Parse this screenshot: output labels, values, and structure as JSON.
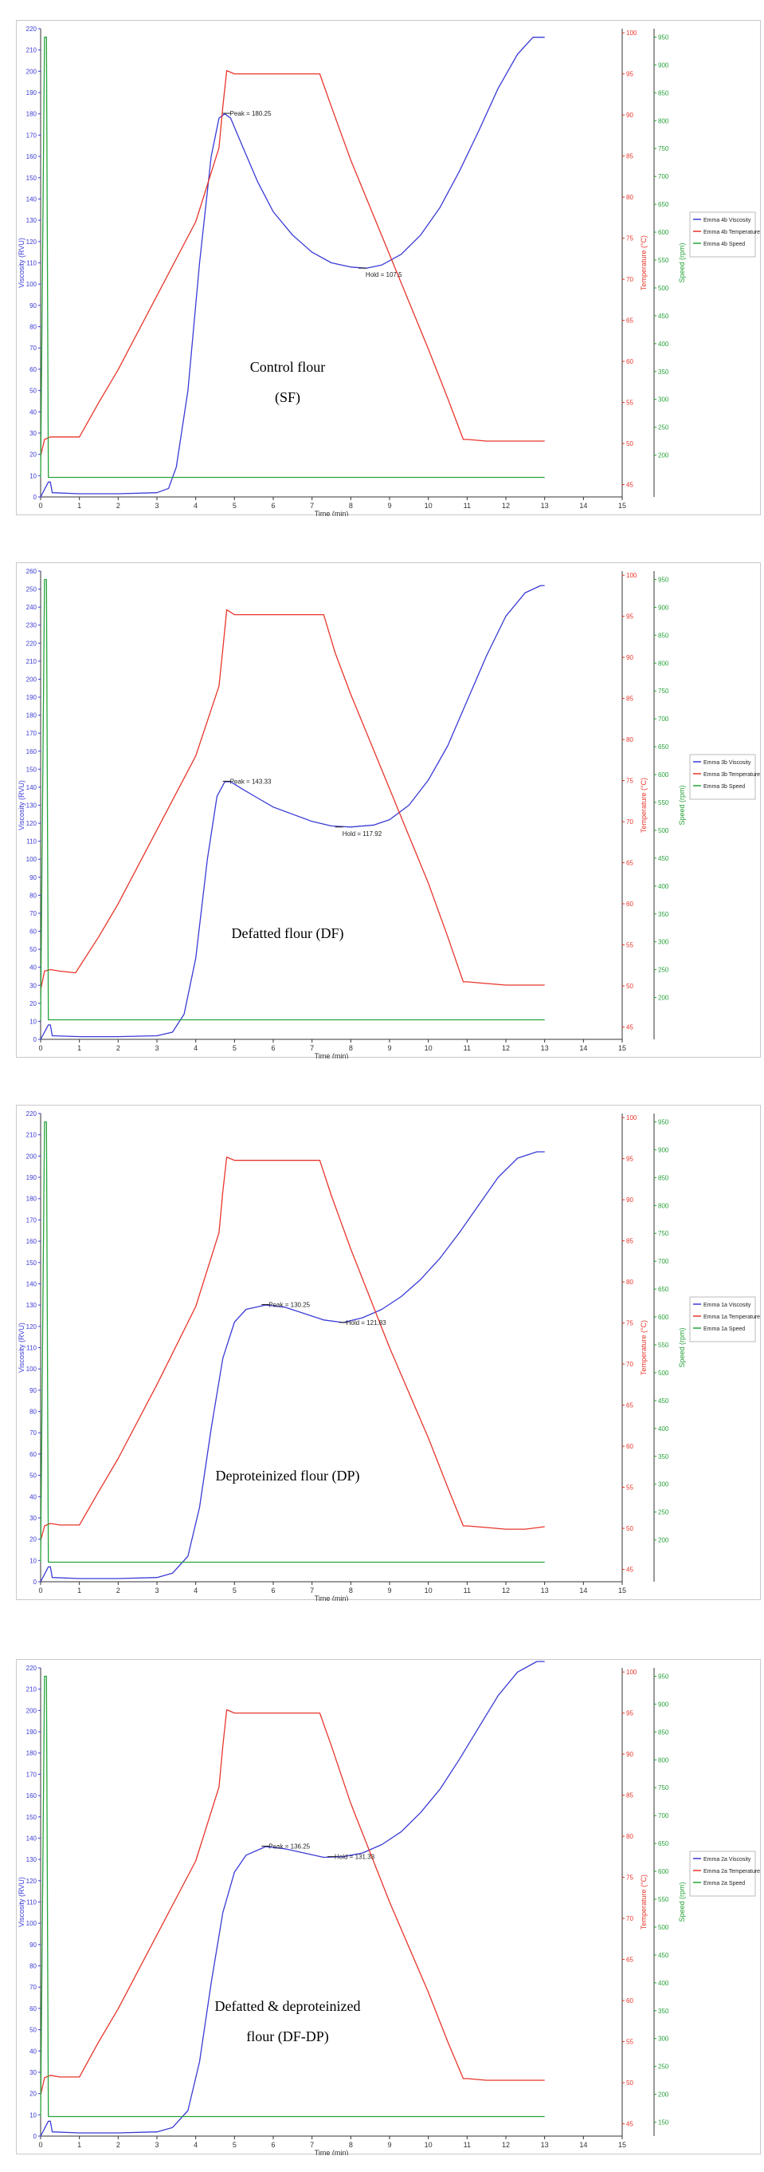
{
  "chart_data": [
    {
      "type": "line",
      "caption_lines": [
        "Control flour",
        "(SF)"
      ],
      "xlabel": "Time (min)",
      "ylabel_left": "Viscosity (RVU)",
      "ylabel_temp": "Temperature (°C)",
      "ylabel_speed": "Speed (rpm)",
      "xlim": [
        0,
        15
      ],
      "xticks": [
        0,
        1,
        2,
        3,
        4,
        5,
        6,
        7,
        8,
        9,
        10,
        11,
        12,
        13,
        14,
        15
      ],
      "ylim": [
        0,
        220
      ],
      "ystep": 10,
      "temp_lim": [
        43.5,
        100.5
      ],
      "temp_ticks": [
        45,
        50,
        55,
        60,
        65,
        70,
        75,
        80,
        85,
        90,
        95,
        100
      ],
      "speed_lim": [
        125,
        965
      ],
      "speed_ticks": [
        200,
        250,
        300,
        350,
        400,
        450,
        500,
        550,
        600,
        650,
        700,
        750,
        800,
        850,
        900,
        950
      ],
      "colors": {
        "viscosity": "#3a3ad6",
        "temperature": "#e8352b",
        "speed": "#27a33a"
      },
      "legend_position": "right",
      "series": [
        {
          "name": "Emma 4b Viscosity",
          "axis": "left",
          "x": [
            0,
            0.2,
            0.25,
            0.3,
            1,
            2,
            3,
            3.3,
            3.5,
            3.8,
            4.1,
            4.4,
            4.6,
            4.75,
            4.9,
            5.2,
            5.6,
            6,
            6.5,
            7,
            7.5,
            8,
            8.4,
            8.8,
            9.3,
            9.8,
            10.3,
            10.8,
            11.3,
            11.8,
            12.3,
            12.7,
            13
          ],
          "y": [
            0,
            7,
            7,
            2,
            1.5,
            1.5,
            2,
            4,
            14,
            50,
            110,
            160,
            178,
            180,
            178,
            165,
            148,
            134,
            123,
            115,
            110,
            108,
            107.5,
            109,
            114,
            123,
            136,
            153,
            172,
            192,
            208,
            216,
            216
          ]
        },
        {
          "name": "Emma 4b Temperature",
          "axis": "temp",
          "x": [
            0,
            0.1,
            0.25,
            0.5,
            1,
            1.5,
            2,
            3,
            4,
            4.6,
            4.7,
            4.8,
            5,
            6,
            7,
            7.2,
            7.5,
            8,
            9,
            10,
            10.5,
            10.9,
            11,
            11.5,
            12,
            12.5,
            13
          ],
          "y": [
            48.5,
            50.5,
            50.8,
            50.8,
            50.8,
            55,
            59,
            68,
            77,
            86,
            91,
            95.4,
            95,
            95,
            95,
            95,
            91,
            84.5,
            73,
            61.5,
            55.5,
            50.5,
            50.5,
            50.3,
            50.3,
            50.3,
            50.3
          ]
        },
        {
          "name": "Emma 4b Speed",
          "axis": "speed",
          "x": [
            0,
            0.1,
            0.15,
            0.2,
            13
          ],
          "y": [
            160,
            950,
            950,
            160,
            160
          ]
        }
      ],
      "annotations": [
        {
          "text": "Peak = 180.25",
          "x": 4.8,
          "y": 180.25,
          "pos": "right"
        },
        {
          "text": "Hold = 107.5",
          "x": 8.3,
          "y": 107.5,
          "pos": "below-right"
        }
      ]
    },
    {
      "type": "line",
      "caption_lines": [
        "Defatted flour (DF)"
      ],
      "xlabel": "Time (min)",
      "ylabel_left": "Viscosity (RVU)",
      "ylabel_temp": "Temperature (°C)",
      "ylabel_speed": "Speed (rpm)",
      "xlim": [
        0,
        15
      ],
      "xticks": [
        0,
        1,
        2,
        3,
        4,
        5,
        6,
        7,
        8,
        9,
        10,
        11,
        12,
        13,
        14,
        15
      ],
      "ylim": [
        0,
        260
      ],
      "ystep": 10,
      "temp_lim": [
        43.5,
        100.5
      ],
      "temp_ticks": [
        45,
        50,
        55,
        60,
        65,
        70,
        75,
        80,
        85,
        90,
        95,
        100
      ],
      "speed_lim": [
        125,
        965
      ],
      "speed_ticks": [
        200,
        250,
        300,
        350,
        400,
        450,
        500,
        550,
        600,
        650,
        700,
        750,
        800,
        850,
        900,
        950
      ],
      "colors": {
        "viscosity": "#3a3ad6",
        "temperature": "#e8352b",
        "speed": "#27a33a"
      },
      "legend_position": "right",
      "series": [
        {
          "name": "Emma 3b Viscosity",
          "axis": "left",
          "x": [
            0,
            0.2,
            0.25,
            0.3,
            1,
            2,
            3,
            3.4,
            3.7,
            4,
            4.3,
            4.55,
            4.75,
            4.9,
            5.2,
            5.6,
            6,
            6.5,
            7,
            7.5,
            8,
            8.6,
            9,
            9.5,
            10,
            10.5,
            11,
            11.5,
            12,
            12.5,
            12.9,
            13
          ],
          "y": [
            0,
            8,
            8,
            2,
            1.5,
            1.5,
            2,
            4,
            14,
            45,
            100,
            135,
            143,
            143,
            139,
            134,
            129,
            125,
            121,
            118.5,
            117.9,
            119,
            122,
            130,
            144,
            163,
            188,
            213,
            235,
            248,
            252,
            252
          ]
        },
        {
          "name": "Emma 3b Temperature",
          "axis": "temp",
          "x": [
            0,
            0.1,
            0.25,
            0.5,
            0.9,
            1.5,
            2,
            3,
            4,
            4.6,
            4.7,
            4.8,
            5,
            6,
            7,
            7.3,
            7.6,
            8,
            9,
            10,
            10.5,
            10.9,
            11,
            11.5,
            12,
            12.5,
            13
          ],
          "y": [
            49.5,
            51.8,
            52,
            51.8,
            51.6,
            56,
            60,
            69,
            78,
            86.5,
            91,
            95.8,
            95.2,
            95.2,
            95.2,
            95.2,
            90.5,
            85.5,
            74,
            62.5,
            56,
            50.5,
            50.5,
            50.3,
            50.1,
            50.1,
            50.1
          ]
        },
        {
          "name": "Emma 3b Speed",
          "axis": "speed",
          "x": [
            0,
            0.1,
            0.15,
            0.2,
            13
          ],
          "y": [
            160,
            950,
            950,
            160,
            160
          ]
        }
      ],
      "annotations": [
        {
          "text": "Peak = 143.33",
          "x": 4.8,
          "y": 143.33,
          "pos": "right"
        },
        {
          "text": "Hold = 117.92",
          "x": 7.7,
          "y": 117.92,
          "pos": "below-right"
        }
      ]
    },
    {
      "type": "line",
      "caption_lines": [
        "Deproteinized flour (DP)"
      ],
      "xlabel": "Time (min)",
      "ylabel_left": "Viscosity (RVU)",
      "ylabel_temp": "Temperature (°C)",
      "ylabel_speed": "Speed (rpm)",
      "xlim": [
        0,
        15
      ],
      "xticks": [
        0,
        1,
        2,
        3,
        4,
        5,
        6,
        7,
        8,
        9,
        10,
        11,
        12,
        13,
        14,
        15
      ],
      "ylim": [
        0,
        220
      ],
      "ystep": 10,
      "temp_lim": [
        43.5,
        100.5
      ],
      "temp_ticks": [
        45,
        50,
        55,
        60,
        65,
        70,
        75,
        80,
        85,
        90,
        95,
        100
      ],
      "speed_lim": [
        125,
        965
      ],
      "speed_ticks": [
        200,
        250,
        300,
        350,
        400,
        450,
        500,
        550,
        600,
        650,
        700,
        750,
        800,
        850,
        900,
        950
      ],
      "colors": {
        "viscosity": "#3a3ad6",
        "temperature": "#e8352b",
        "speed": "#27a33a"
      },
      "legend_position": "right",
      "series": [
        {
          "name": "Emma 1a Viscosity",
          "axis": "left",
          "x": [
            0,
            0.2,
            0.25,
            0.3,
            1,
            2,
            3,
            3.4,
            3.8,
            4.1,
            4.4,
            4.7,
            5,
            5.3,
            5.8,
            6.3,
            6.8,
            7.3,
            7.8,
            8.3,
            8.8,
            9.3,
            9.8,
            10.3,
            10.8,
            11.3,
            11.8,
            12.3,
            12.8,
            13
          ],
          "y": [
            0,
            7,
            7,
            2,
            1.5,
            1.5,
            2,
            4,
            12,
            35,
            72,
            105,
            122,
            128,
            130,
            129,
            126,
            123,
            121.8,
            124,
            128,
            134,
            142,
            152,
            164,
            177,
            190,
            199,
            202,
            202
          ]
        },
        {
          "name": "Emma 1a Temperature",
          "axis": "temp",
          "x": [
            0,
            0.1,
            0.25,
            0.5,
            1,
            1.5,
            2,
            3,
            4,
            4.6,
            4.7,
            4.8,
            5,
            6,
            7,
            7.2,
            7.5,
            8,
            9,
            10,
            10.5,
            10.9,
            11,
            11.5,
            12,
            12.5,
            13
          ],
          "y": [
            48.5,
            50.3,
            50.6,
            50.4,
            50.4,
            54.5,
            58.5,
            67.5,
            77,
            86,
            91,
            95.2,
            94.8,
            94.8,
            94.8,
            94.8,
            90.5,
            84,
            72,
            61,
            55,
            50.3,
            50.3,
            50.1,
            49.9,
            49.9,
            50.2
          ]
        },
        {
          "name": "Emma 1a Speed",
          "axis": "speed",
          "x": [
            0,
            0.1,
            0.15,
            0.2,
            13
          ],
          "y": [
            160,
            950,
            950,
            160,
            160
          ]
        }
      ],
      "annotations": [
        {
          "text": "Peak = 130.25",
          "x": 5.8,
          "y": 130.25,
          "pos": "right"
        },
        {
          "text": "Hold = 121.83",
          "x": 7.8,
          "y": 121.83,
          "pos": "right"
        }
      ]
    },
    {
      "type": "line",
      "caption_lines": [
        "Defatted & deproteinized",
        "flour (DF-DP)"
      ],
      "xlabel": "Time (min)",
      "ylabel_left": "Viscosity (RVU)",
      "ylabel_temp": "Temperature (°C)",
      "ylabel_speed": "Speed (rpm)",
      "xlim": [
        0,
        15
      ],
      "xticks": [
        0,
        1,
        2,
        3,
        4,
        5,
        6,
        7,
        8,
        9,
        10,
        11,
        12,
        13,
        14,
        15
      ],
      "ylim": [
        0,
        220
      ],
      "ystep": 10,
      "temp_lim": [
        43.5,
        100.5
      ],
      "temp_ticks": [
        45,
        50,
        55,
        60,
        65,
        70,
        75,
        80,
        85,
        90,
        95,
        100
      ],
      "speed_lim": [
        125,
        965
      ],
      "speed_ticks": [
        150,
        200,
        250,
        300,
        350,
        400,
        450,
        500,
        550,
        600,
        650,
        700,
        750,
        800,
        850,
        900,
        950
      ],
      "colors": {
        "viscosity": "#3a3ad6",
        "temperature": "#e8352b",
        "speed": "#27a33a"
      },
      "legend_position": "right",
      "series": [
        {
          "name": "Emma 2a Viscosity",
          "axis": "left",
          "x": [
            0,
            0.2,
            0.25,
            0.3,
            1,
            2,
            3,
            3.4,
            3.8,
            4.1,
            4.4,
            4.7,
            5,
            5.3,
            5.8,
            6.3,
            6.8,
            7.3,
            7.8,
            8.3,
            8.8,
            9.3,
            9.8,
            10.3,
            10.8,
            11.3,
            11.8,
            12.3,
            12.8,
            13
          ],
          "y": [
            0,
            7,
            7,
            2,
            1.5,
            1.5,
            2,
            4,
            12,
            35,
            72,
            105,
            124,
            132,
            136,
            135,
            133,
            131,
            131.3,
            133,
            137,
            143,
            152,
            163,
            177,
            192,
            207,
            218,
            223,
            223
          ]
        },
        {
          "name": "Emma 2a Temperature",
          "axis": "temp",
          "x": [
            0,
            0.1,
            0.25,
            0.5,
            1,
            1.5,
            2,
            3,
            4,
            4.6,
            4.7,
            4.8,
            5,
            6,
            7,
            7.2,
            7.5,
            8,
            9,
            10,
            10.5,
            10.9,
            11,
            11.5,
            12,
            12.5,
            13
          ],
          "y": [
            48.5,
            50.6,
            50.9,
            50.7,
            50.7,
            55,
            59,
            68,
            77,
            86,
            91,
            95.4,
            95,
            95,
            95,
            95,
            91,
            84,
            72,
            61,
            55,
            50.5,
            50.5,
            50.3,
            50.3,
            50.3,
            50.3
          ]
        },
        {
          "name": "Emma 2a Speed",
          "axis": "speed",
          "x": [
            0,
            0.1,
            0.15,
            0.2,
            13
          ],
          "y": [
            160,
            950,
            950,
            160,
            160
          ]
        }
      ],
      "annotations": [
        {
          "text": "Peak = 136.25",
          "x": 5.8,
          "y": 136.25,
          "pos": "right"
        },
        {
          "text": "Hold = 131.33",
          "x": 7.5,
          "y": 131.33,
          "pos": "right"
        }
      ]
    }
  ]
}
